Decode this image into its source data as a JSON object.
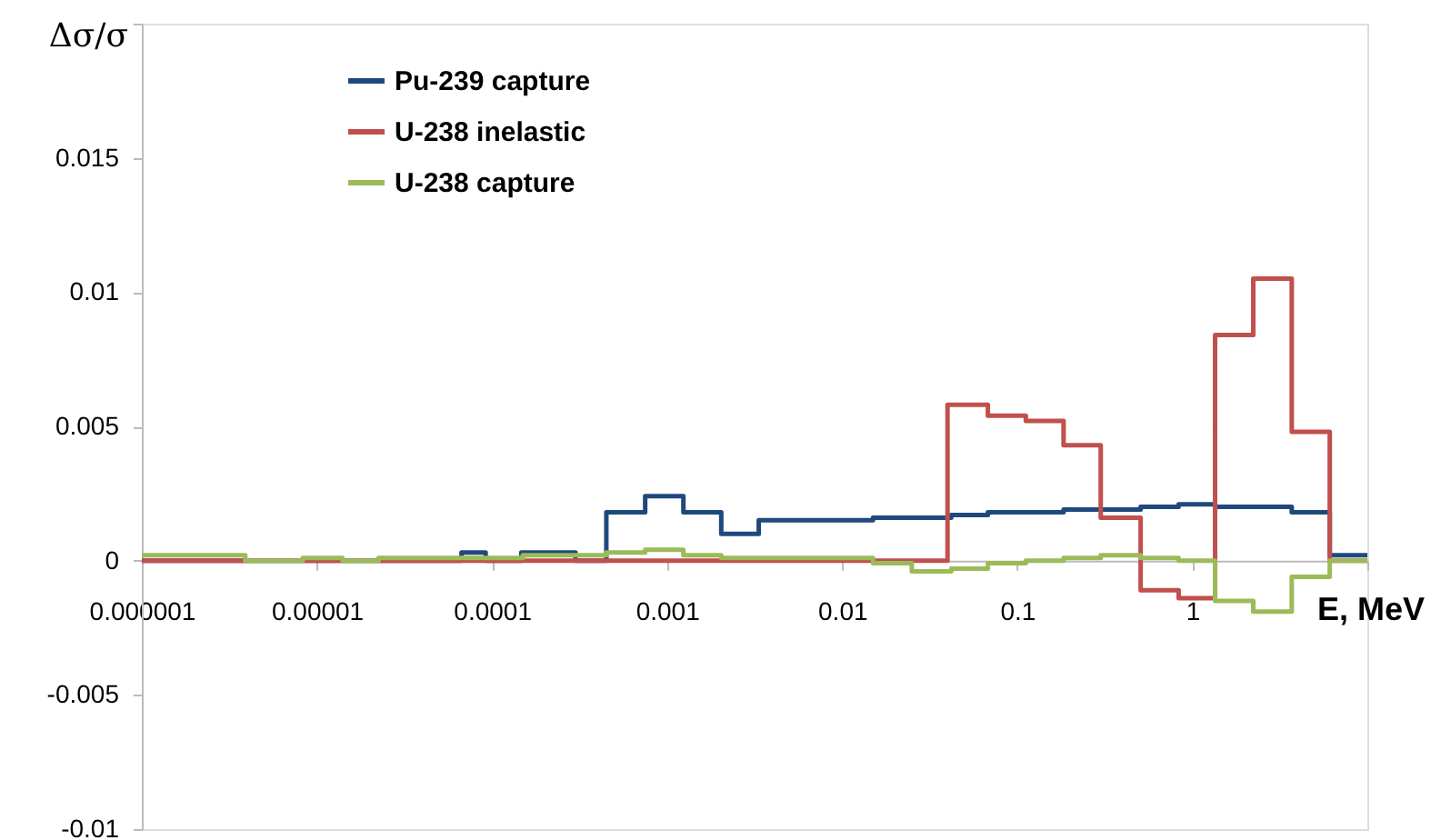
{
  "chart_data": {
    "type": "step",
    "xlabel": "E, MeV",
    "ylabel": "Δσ/σ",
    "log": "x",
    "grid": false,
    "legend": "top left",
    "marker": "none",
    "line_style": "solid",
    "xlim": [
      1e-06,
      10
    ],
    "xticks": [
      {
        "value": 1e-06,
        "label": "0.000001"
      },
      {
        "value": 1e-05,
        "label": "0.00001"
      },
      0.0001,
      0.001,
      0.01,
      0.1,
      1,
      {
        "value": 10,
        "label": null
      }
    ],
    "ylim": [
      -0.01,
      0.02
    ],
    "yticks": [
      -0.01,
      -0.005,
      0,
      0.005,
      0.01,
      0.015,
      {
        "value": 0.02,
        "label": null
      }
    ],
    "series": [
      {
        "name": "Pu-239 capture",
        "color": "#1f497d",
        "x": [
          1e-06,
          6.7e-05,
          9.2e-05,
          0.000147,
          0.0003,
          0.00045,
          0.00075,
          0.00124,
          0.00204,
          0.00334,
          0.015,
          0.025,
          0.042,
          0.068,
          0.184,
          0.507,
          0.836,
          1.35,
          3.7,
          6.1,
          10
        ],
        "values": [
          0,
          0.0003,
          0,
          0.0003,
          0,
          0.0018,
          0.0024,
          0.0018,
          0.001,
          0.0015,
          0.0016,
          0.0016,
          0.0017,
          0.0018,
          0.0019,
          0.002,
          0.0021,
          0.002,
          0.0018,
          0.0002,
          0.0002
        ]
      },
      {
        "name": "U-238 inelastic",
        "color": "#c0504d",
        "x": [
          1e-06,
          0.04,
          0.068,
          0.112,
          0.184,
          0.3,
          0.507,
          0.836,
          1.35,
          2.23,
          3.7,
          6.1,
          10
        ],
        "values": [
          0,
          0.0058,
          0.0054,
          0.0052,
          0.0043,
          0.0016,
          -0.0011,
          -0.0014,
          0.0084,
          0.0105,
          0.0048,
          0,
          0
        ]
      },
      {
        "name": "U-238 capture",
        "color": "#9bbb59",
        "x": [
          1e-06,
          3.9e-06,
          8.3e-06,
          1.4e-05,
          2.25e-05,
          0.00015,
          0.00045,
          0.00075,
          0.00124,
          0.00204,
          0.015,
          0.025,
          0.042,
          0.068,
          0.112,
          0.184,
          0.3,
          0.507,
          0.836,
          1.35,
          2.23,
          3.7,
          6.1,
          10
        ],
        "values": [
          0.0002,
          0,
          0.0001,
          0,
          0.0001,
          0.0002,
          0.0003,
          0.0004,
          0.0002,
          0.0001,
          -0.0001,
          -0.0004,
          -0.0003,
          -0.0001,
          0,
          0.0001,
          0.0002,
          0.0001,
          0,
          -0.0015,
          -0.0019,
          -0.0006,
          0,
          0
        ]
      }
    ]
  }
}
